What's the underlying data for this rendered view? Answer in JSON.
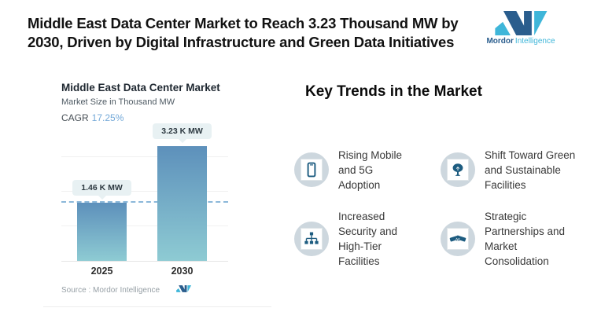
{
  "header": {
    "title_lines": [
      "Middle East Data Center Market to Reach 3.23 Thousand MW by",
      "2030, Driven by Digital Infrastructure and Green Data Initiatives"
    ],
    "brand": {
      "primary": "Mordor",
      "secondary": "Intelligence"
    }
  },
  "chart_data": {
    "type": "bar",
    "title": "Middle East Data Center Market",
    "subtitle": "Market Size in Thousand MW",
    "cagr_label": "CAGR",
    "cagr_value": "17.25%",
    "categories": [
      "2025",
      "2030"
    ],
    "values": [
      1.46,
      3.23
    ],
    "value_labels": [
      "1.46 K MW",
      "3.23 K MW"
    ],
    "ylabel": "Market Size in Thousand MW",
    "xlabel": "",
    "ylim": [
      0,
      3.5
    ],
    "grid": true,
    "legend": false,
    "reference_line": 1.46,
    "source": "Source : Mordor Intelligence"
  },
  "trends": {
    "heading": "Key Trends in the Market",
    "items": [
      {
        "icon": "mobile-phone-icon",
        "label": "Rising Mobile and 5G Adoption"
      },
      {
        "icon": "tree-icon",
        "label": "Shift Toward Green and Sustainable Facilities"
      },
      {
        "icon": "hierarchy-icon",
        "label": "Increased Security and High-Tier Facilities"
      },
      {
        "icon": "handshake-icon",
        "label": "Strategic Partnerships and Market Consolidation"
      }
    ]
  },
  "colors": {
    "brand_dark_blue": "#2a5d8d",
    "brand_light_blue": "#3fb6d9",
    "bar_gradient_top": "#5d90bb",
    "bar_gradient_bottom": "#8ecbd3",
    "cagr_value": "#74a9d8",
    "dashed_reference": "#8cb8d9",
    "tooltip_background": "#e8f1f2",
    "icon_circle_background": "#cdd7de",
    "icon_glyph": "#1d5c80"
  }
}
